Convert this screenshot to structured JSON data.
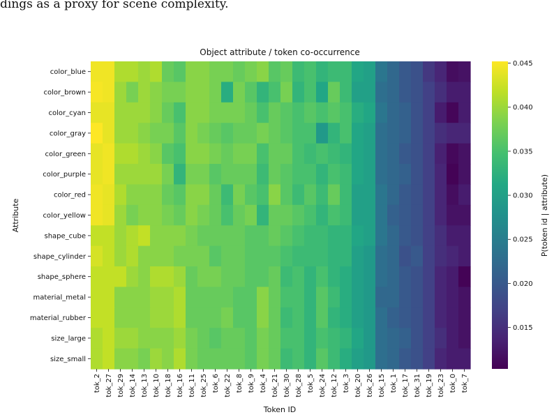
{
  "page_text": {
    "caption_fragment": "dings as a proxy for scene complexity."
  },
  "chart_data": {
    "type": "heatmap",
    "title": "Object attribute / token co-occurrence",
    "xlabel": "Token ID",
    "ylabel": "Attribute",
    "colorbar_label": "P(token id | attribute)",
    "colormap": "viridis",
    "vmin": 0.0103,
    "vmax": 0.0452,
    "colorbar_ticks": [
      0.015,
      0.02,
      0.025,
      0.03,
      0.035,
      0.04,
      0.045
    ],
    "colorbar_tick_labels": [
      "0.015",
      "0.020",
      "0.025",
      "0.030",
      "0.035",
      "0.040",
      "0.045"
    ],
    "x_categories": [
      "tok_2",
      "tok_27",
      "tok_29",
      "tok_14",
      "tok_13",
      "tok_10",
      "tok_18",
      "tok_16",
      "tok_11",
      "tok_25",
      "tok_6",
      "tok_22",
      "tok_8",
      "tok_9",
      "tok_4",
      "tok_21",
      "tok_30",
      "tok_28",
      "tok_5",
      "tok_24",
      "tok_12",
      "tok_3",
      "tok_20",
      "tok_26",
      "tok_15",
      "tok_1",
      "tok_17",
      "tok_31",
      "tok_19",
      "tok_23",
      "tok_0",
      "tok_7"
    ],
    "y_categories": [
      "color_blue",
      "color_brown",
      "color_cyan",
      "color_gray",
      "color_green",
      "color_purple",
      "color_red",
      "color_yellow",
      "shape_cube",
      "shape_cylinder",
      "shape_sphere",
      "material_metal",
      "material_rubber",
      "size_large",
      "size_small"
    ],
    "values": [
      [
        0.0445,
        0.0445,
        0.041,
        0.041,
        0.04,
        0.041,
        0.037,
        0.036,
        0.039,
        0.039,
        0.038,
        0.038,
        0.037,
        0.038,
        0.039,
        0.036,
        0.037,
        0.034,
        0.035,
        0.033,
        0.034,
        0.034,
        0.031,
        0.03,
        0.024,
        0.022,
        0.02,
        0.019,
        0.016,
        0.014,
        0.0115,
        0.012
      ],
      [
        0.0448,
        0.0445,
        0.04,
        0.038,
        0.04,
        0.039,
        0.038,
        0.038,
        0.039,
        0.039,
        0.038,
        0.032,
        0.038,
        0.036,
        0.033,
        0.035,
        0.038,
        0.033,
        0.035,
        0.031,
        0.037,
        0.034,
        0.03,
        0.03,
        0.023,
        0.022,
        0.02,
        0.019,
        0.017,
        0.015,
        0.013,
        0.013
      ],
      [
        0.044,
        0.044,
        0.04,
        0.04,
        0.04,
        0.039,
        0.037,
        0.035,
        0.039,
        0.039,
        0.038,
        0.038,
        0.038,
        0.037,
        0.035,
        0.037,
        0.036,
        0.035,
        0.036,
        0.035,
        0.036,
        0.035,
        0.032,
        0.031,
        0.024,
        0.022,
        0.021,
        0.019,
        0.017,
        0.013,
        0.0108,
        0.013
      ],
      [
        0.0452,
        0.044,
        0.04,
        0.04,
        0.039,
        0.038,
        0.038,
        0.036,
        0.039,
        0.038,
        0.037,
        0.036,
        0.037,
        0.037,
        0.038,
        0.037,
        0.036,
        0.035,
        0.035,
        0.029,
        0.033,
        0.035,
        0.031,
        0.03,
        0.023,
        0.022,
        0.021,
        0.019,
        0.017,
        0.015,
        0.014,
        0.014
      ],
      [
        0.044,
        0.0445,
        0.041,
        0.041,
        0.04,
        0.039,
        0.036,
        0.035,
        0.039,
        0.039,
        0.038,
        0.037,
        0.038,
        0.038,
        0.035,
        0.037,
        0.037,
        0.035,
        0.034,
        0.035,
        0.034,
        0.033,
        0.031,
        0.03,
        0.023,
        0.022,
        0.02,
        0.019,
        0.017,
        0.0135,
        0.011,
        0.012
      ],
      [
        0.044,
        0.0445,
        0.04,
        0.04,
        0.04,
        0.04,
        0.038,
        0.033,
        0.038,
        0.038,
        0.036,
        0.037,
        0.037,
        0.037,
        0.034,
        0.037,
        0.036,
        0.035,
        0.035,
        0.033,
        0.035,
        0.034,
        0.031,
        0.03,
        0.023,
        0.022,
        0.021,
        0.019,
        0.017,
        0.014,
        0.0105,
        0.012
      ],
      [
        0.0445,
        0.044,
        0.041,
        0.039,
        0.039,
        0.039,
        0.037,
        0.036,
        0.039,
        0.039,
        0.037,
        0.034,
        0.038,
        0.036,
        0.035,
        0.039,
        0.036,
        0.034,
        0.036,
        0.034,
        0.037,
        0.034,
        0.03,
        0.03,
        0.024,
        0.022,
        0.02,
        0.019,
        0.017,
        0.014,
        0.0115,
        0.013
      ],
      [
        0.0445,
        0.044,
        0.04,
        0.038,
        0.039,
        0.039,
        0.038,
        0.037,
        0.039,
        0.038,
        0.037,
        0.035,
        0.037,
        0.038,
        0.033,
        0.037,
        0.037,
        0.036,
        0.035,
        0.033,
        0.035,
        0.034,
        0.03,
        0.03,
        0.024,
        0.021,
        0.02,
        0.019,
        0.017,
        0.014,
        0.012,
        0.012
      ],
      [
        0.042,
        0.042,
        0.04,
        0.041,
        0.042,
        0.039,
        0.039,
        0.039,
        0.038,
        0.037,
        0.037,
        0.037,
        0.037,
        0.036,
        0.036,
        0.037,
        0.036,
        0.035,
        0.034,
        0.034,
        0.033,
        0.033,
        0.031,
        0.03,
        0.024,
        0.022,
        0.02,
        0.019,
        0.017,
        0.015,
        0.013,
        0.013
      ],
      [
        0.043,
        0.042,
        0.04,
        0.041,
        0.039,
        0.039,
        0.039,
        0.038,
        0.038,
        0.038,
        0.036,
        0.037,
        0.037,
        0.036,
        0.036,
        0.036,
        0.035,
        0.034,
        0.034,
        0.034,
        0.033,
        0.033,
        0.03,
        0.029,
        0.023,
        0.022,
        0.019,
        0.02,
        0.017,
        0.015,
        0.014,
        0.013
      ],
      [
        0.042,
        0.042,
        0.042,
        0.04,
        0.039,
        0.041,
        0.041,
        0.04,
        0.037,
        0.038,
        0.038,
        0.037,
        0.037,
        0.036,
        0.036,
        0.037,
        0.034,
        0.035,
        0.033,
        0.035,
        0.033,
        0.032,
        0.03,
        0.029,
        0.023,
        0.022,
        0.02,
        0.019,
        0.017,
        0.014,
        0.013,
        0.0105
      ],
      [
        0.042,
        0.042,
        0.039,
        0.039,
        0.039,
        0.04,
        0.04,
        0.041,
        0.037,
        0.037,
        0.037,
        0.037,
        0.036,
        0.036,
        0.039,
        0.037,
        0.035,
        0.035,
        0.033,
        0.036,
        0.034,
        0.032,
        0.03,
        0.029,
        0.022,
        0.022,
        0.02,
        0.019,
        0.017,
        0.014,
        0.013,
        0.012
      ],
      [
        0.042,
        0.042,
        0.039,
        0.039,
        0.039,
        0.04,
        0.04,
        0.041,
        0.037,
        0.037,
        0.037,
        0.038,
        0.036,
        0.036,
        0.039,
        0.037,
        0.034,
        0.035,
        0.033,
        0.036,
        0.033,
        0.032,
        0.03,
        0.029,
        0.023,
        0.021,
        0.02,
        0.019,
        0.017,
        0.014,
        0.013,
        0.012
      ],
      [
        0.041,
        0.042,
        0.04,
        0.04,
        0.039,
        0.039,
        0.039,
        0.04,
        0.038,
        0.037,
        0.036,
        0.037,
        0.037,
        0.036,
        0.038,
        0.037,
        0.035,
        0.035,
        0.033,
        0.035,
        0.034,
        0.033,
        0.031,
        0.029,
        0.023,
        0.022,
        0.021,
        0.019,
        0.017,
        0.015,
        0.013,
        0.012
      ],
      [
        0.041,
        0.042,
        0.039,
        0.039,
        0.038,
        0.04,
        0.039,
        0.041,
        0.038,
        0.037,
        0.037,
        0.037,
        0.037,
        0.036,
        0.038,
        0.037,
        0.034,
        0.035,
        0.033,
        0.036,
        0.034,
        0.032,
        0.03,
        0.029,
        0.023,
        0.022,
        0.02,
        0.019,
        0.017,
        0.014,
        0.013,
        0.013
      ]
    ]
  }
}
